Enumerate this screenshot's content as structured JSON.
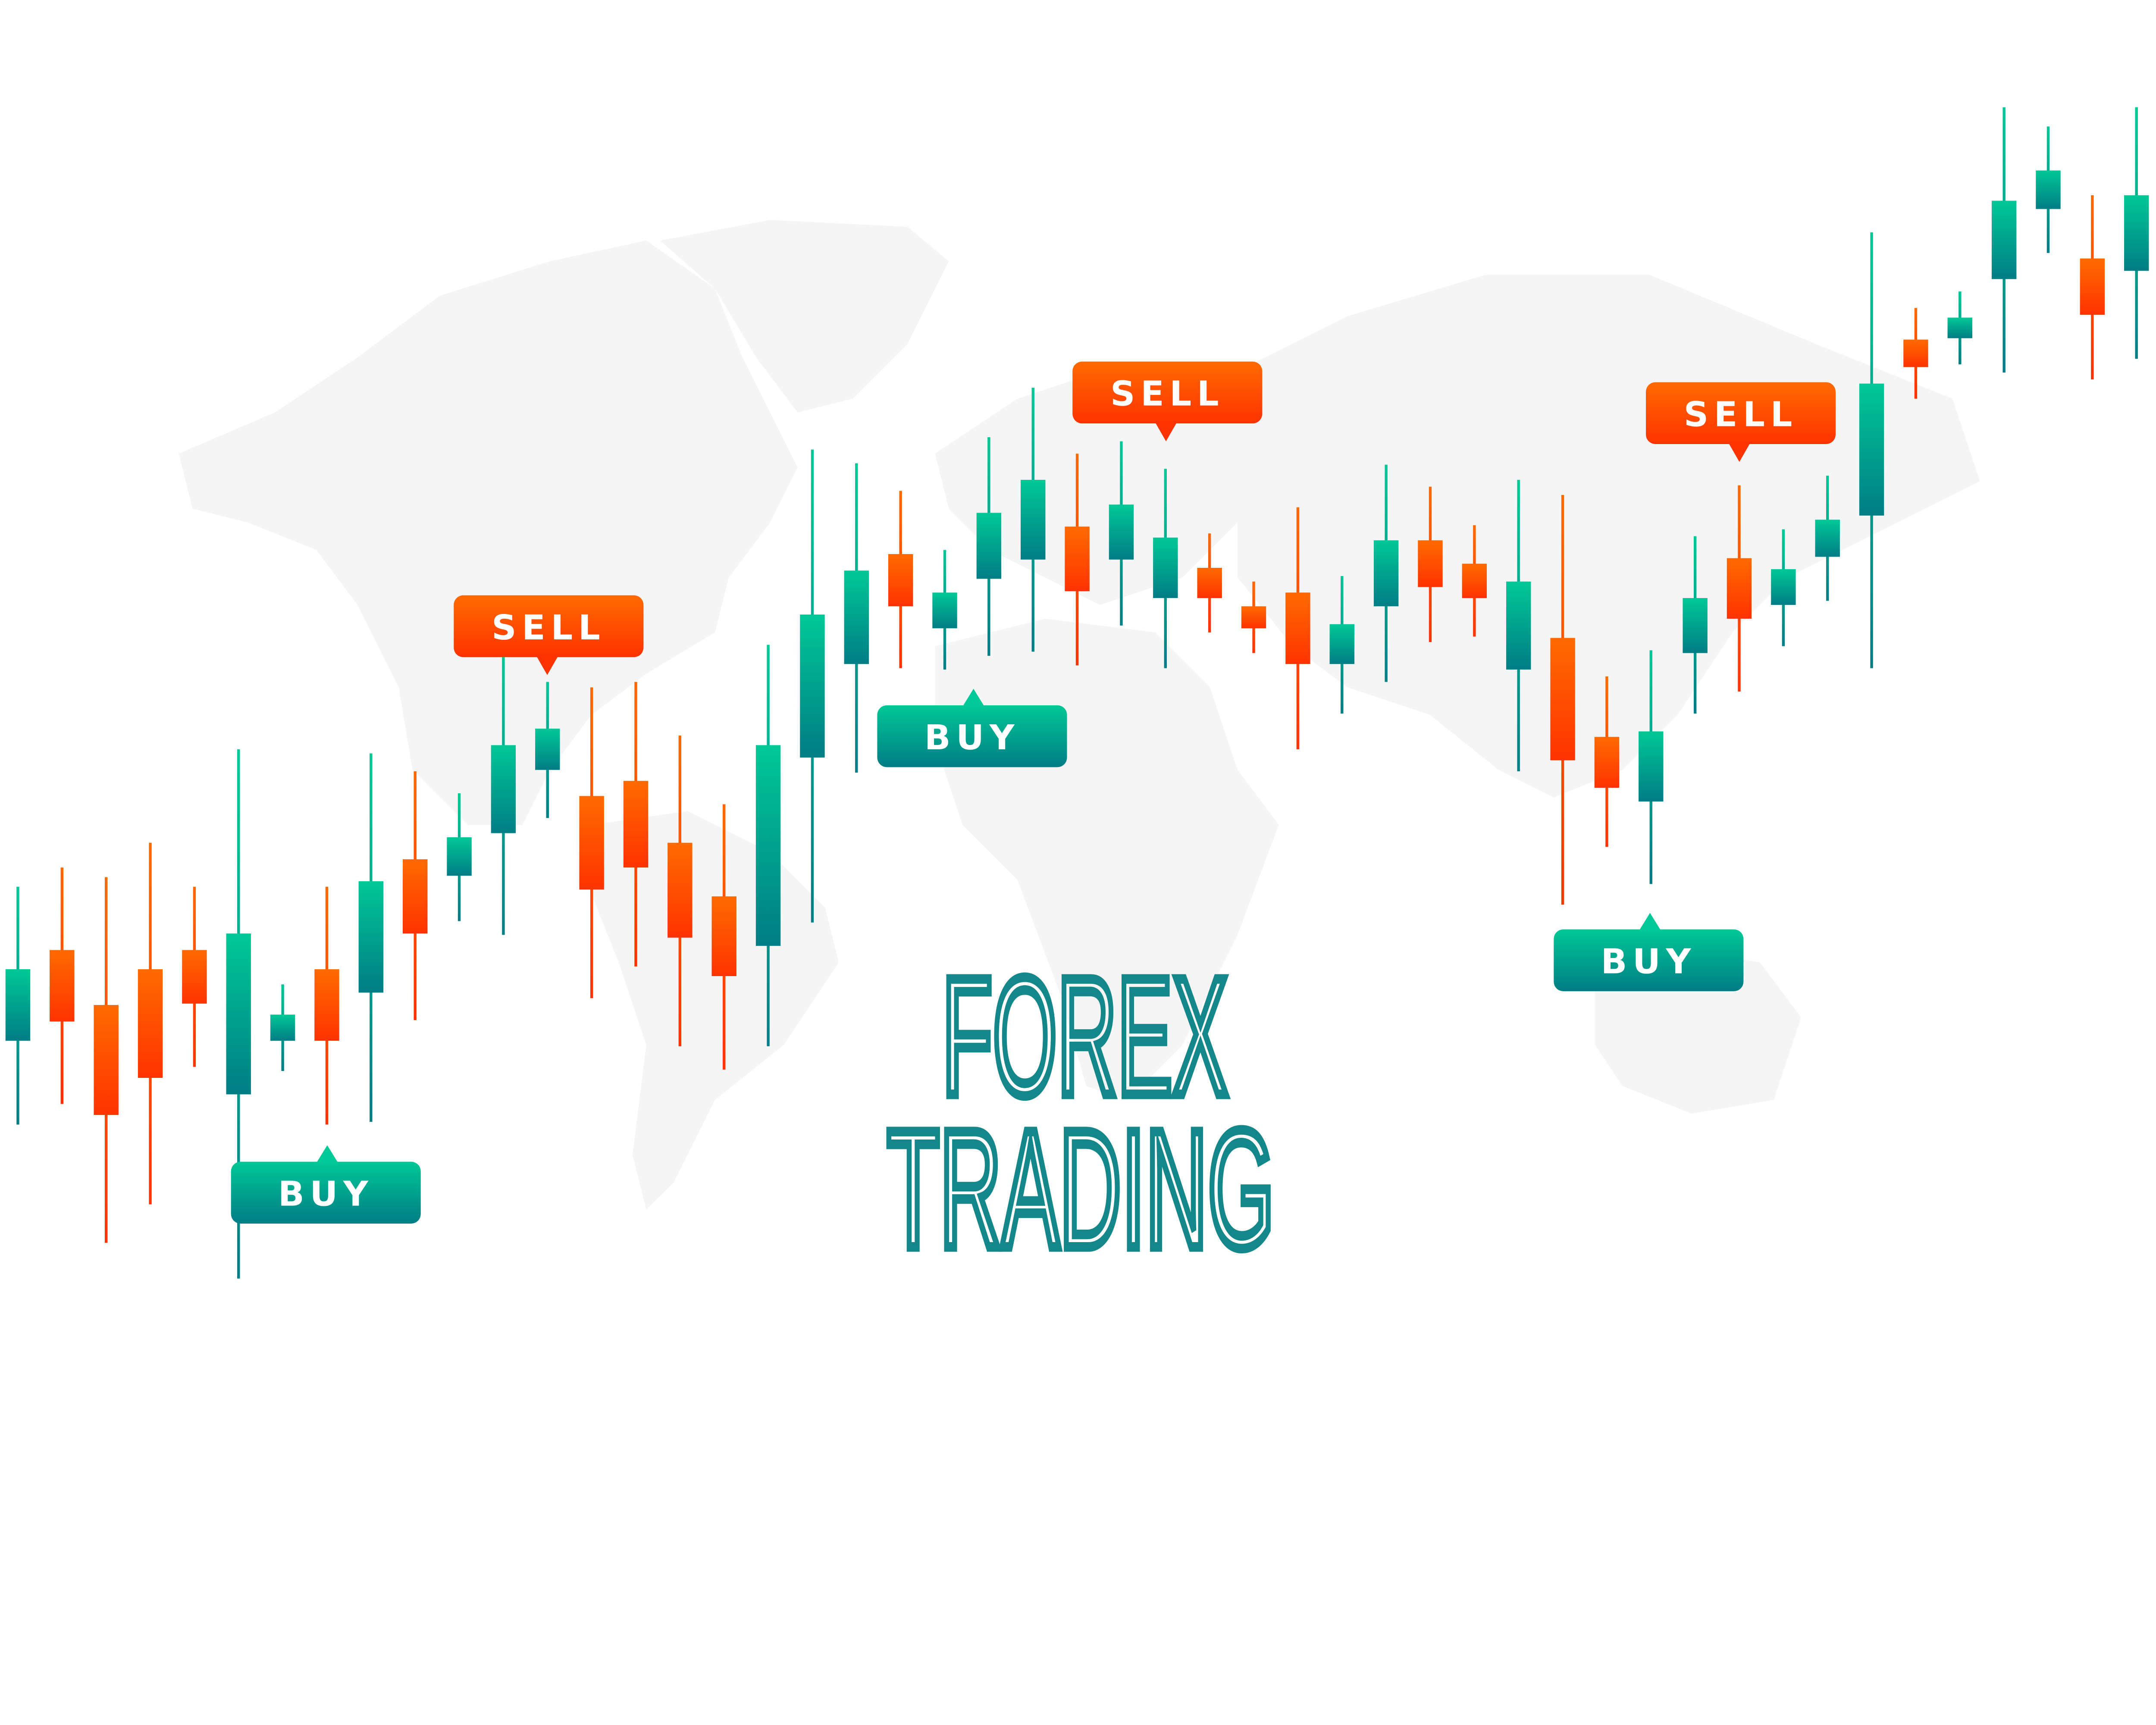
{
  "colors": {
    "bull_top": "#00c896",
    "bull_bottom": "#007d85",
    "bear_top": "#ff6a00",
    "bear_bottom": "#ff3300",
    "title": "#13878a",
    "map": "#f5f5f5",
    "background": "#ffffff"
  },
  "title": {
    "line1": "FOREX",
    "line2": "TRADING"
  },
  "chart_data": {
    "type": "candlestick",
    "title": "",
    "xlabel": "",
    "ylabel": "",
    "grid": false,
    "axes": false,
    "legend": "none",
    "candle_fields": [
      "open",
      "high",
      "low",
      "close"
    ],
    "candles": [
      [
        28.8,
        40.0,
        22.7,
        34.0
      ],
      [
        35.4,
        41.4,
        24.2,
        30.2
      ],
      [
        31.4,
        40.7,
        14.1,
        23.4
      ],
      [
        34.0,
        43.2,
        16.9,
        26.1
      ],
      [
        35.4,
        40.0,
        26.9,
        31.5
      ],
      [
        24.9,
        50.0,
        11.5,
        36.6
      ],
      [
        28.8,
        32.9,
        26.6,
        30.7
      ],
      [
        34.0,
        40.0,
        22.7,
        28.8
      ],
      [
        32.3,
        49.7,
        22.9,
        40.4
      ],
      [
        42.0,
        48.4,
        30.3,
        36.6
      ],
      [
        40.8,
        46.8,
        37.5,
        43.6
      ],
      [
        43.9,
        56.7,
        36.5,
        50.3
      ],
      [
        48.5,
        54.9,
        45.0,
        51.5
      ],
      [
        46.6,
        54.5,
        31.9,
        39.8
      ],
      [
        47.7,
        54.9,
        34.2,
        41.4
      ],
      [
        43.2,
        51.0,
        28.4,
        36.3
      ],
      [
        39.3,
        46.0,
        26.7,
        33.5
      ],
      [
        35.7,
        57.6,
        28.4,
        50.3
      ],
      [
        49.4,
        71.8,
        37.4,
        59.8
      ],
      [
        56.2,
        70.8,
        48.3,
        63.0
      ],
      [
        64.2,
        68.8,
        55.9,
        60.4
      ],
      [
        58.8,
        64.5,
        55.8,
        61.4
      ],
      [
        62.4,
        72.7,
        56.8,
        67.2
      ],
      [
        63.8,
        76.3,
        57.1,
        69.6
      ],
      [
        66.2,
        71.5,
        56.1,
        61.5
      ],
      [
        63.8,
        72.4,
        59.0,
        67.8
      ],
      [
        61.0,
        70.4,
        55.9,
        65.4
      ],
      [
        63.2,
        65.7,
        58.5,
        61.0
      ],
      [
        60.4,
        62.2,
        57.0,
        58.8
      ],
      [
        61.4,
        67.6,
        50.0,
        56.2
      ],
      [
        56.2,
        62.6,
        52.6,
        59.1
      ],
      [
        60.4,
        70.7,
        54.9,
        65.2
      ],
      [
        65.2,
        69.1,
        57.8,
        61.8
      ],
      [
        63.5,
        66.3,
        58.2,
        61.0
      ],
      [
        55.8,
        69.6,
        48.4,
        62.2
      ],
      [
        58.1,
        68.5,
        38.7,
        49.2
      ],
      [
        50.9,
        55.3,
        42.9,
        47.2
      ],
      [
        46.2,
        57.2,
        40.2,
        51.3
      ],
      [
        57.0,
        65.5,
        52.6,
        61.0
      ],
      [
        63.9,
        69.2,
        54.2,
        59.5
      ],
      [
        60.5,
        66.0,
        57.5,
        63.1
      ],
      [
        64.0,
        69.9,
        60.8,
        66.7
      ],
      [
        67.0,
        87.6,
        55.9,
        76.6
      ],
      [
        79.8,
        82.1,
        75.5,
        77.8
      ],
      [
        79.9,
        83.3,
        78.0,
        81.4
      ],
      [
        84.2,
        96.7,
        77.4,
        89.9
      ],
      [
        89.3,
        95.3,
        86.1,
        92.1
      ],
      [
        85.7,
        90.3,
        76.9,
        81.6
      ],
      [
        84.8,
        96.7,
        78.4,
        90.3
      ]
    ],
    "annotations": [
      {
        "label": "BUY",
        "candle": 8,
        "type": "buy"
      },
      {
        "label": "SELL",
        "candle": 13,
        "type": "sell"
      },
      {
        "label": "BUY",
        "candle": 22,
        "type": "buy"
      },
      {
        "label": "SELL",
        "candle": 27,
        "type": "sell"
      },
      {
        "label": "BUY",
        "candle": 38,
        "type": "buy"
      },
      {
        "label": "SELL",
        "candle": 40,
        "type": "sell"
      }
    ]
  }
}
